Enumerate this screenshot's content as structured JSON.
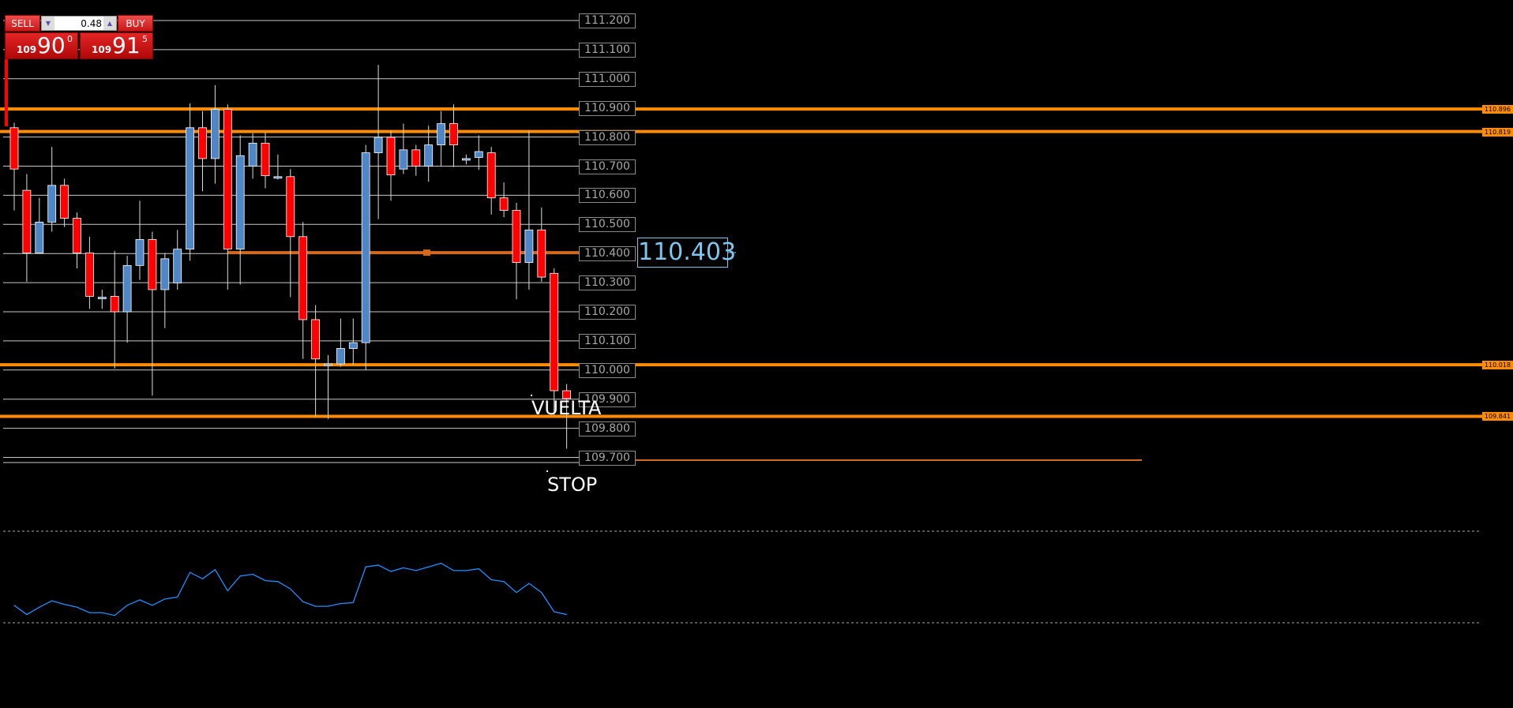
{
  "trade_panel": {
    "sell_label": "SELL",
    "buy_label": "BUY",
    "lot_size": "0.48",
    "sell_price": {
      "prefix": "109",
      "big": "90",
      "sup": "0"
    },
    "buy_price": {
      "prefix": "109",
      "big": "91",
      "sup": "5"
    }
  },
  "price_axis": [
    "111.200",
    "111.100",
    "111.000",
    "110.900",
    "110.800",
    "110.700",
    "110.600",
    "110.500",
    "110.400",
    "110.300",
    "110.200",
    "110.100",
    "110.000",
    "109.900",
    "109.800",
    "109.700"
  ],
  "current_price": "110.403",
  "levels": [
    {
      "label": "110.896",
      "price": 110.896
    },
    {
      "label": "110.819",
      "price": 110.819
    },
    {
      "label": "110.018",
      "price": 110.018
    },
    {
      "label": "109.841",
      "price": 109.841
    }
  ],
  "annotations": {
    "vuelta": "VUELTA",
    "stop": "STOP"
  },
  "colors": {
    "bull": "#4f86c6",
    "bear": "#ff0000",
    "level": "#ff8c00",
    "oscillator": "#1e90ff",
    "current": "#7fc6ee"
  },
  "chart_data": {
    "type": "candlestick",
    "ylim": [
      109.7,
      111.2
    ],
    "candles": [
      [
        110.832,
        110.849,
        110.548,
        110.69
      ],
      [
        110.617,
        110.673,
        110.303,
        110.402
      ],
      [
        110.402,
        110.591,
        110.4,
        110.508
      ],
      [
        110.508,
        110.766,
        110.475,
        110.634
      ],
      [
        110.634,
        110.657,
        110.491,
        110.521
      ],
      [
        110.521,
        110.541,
        110.349,
        110.402
      ],
      [
        110.402,
        110.458,
        110.21,
        110.253
      ],
      [
        110.25,
        110.276,
        110.21,
        110.25
      ],
      [
        110.253,
        110.409,
        110.005,
        110.2
      ],
      [
        110.2,
        110.392,
        110.094,
        110.359
      ],
      [
        110.359,
        110.581,
        110.309,
        110.448
      ],
      [
        110.448,
        110.475,
        109.912,
        110.276
      ],
      [
        110.276,
        110.402,
        110.144,
        110.382
      ],
      [
        110.299,
        110.481,
        110.276,
        110.415
      ],
      [
        110.415,
        110.915,
        110.375,
        110.832
      ],
      [
        110.832,
        110.889,
        110.614,
        110.726
      ],
      [
        110.726,
        110.978,
        110.64,
        110.895
      ],
      [
        110.895,
        110.912,
        110.276,
        110.415
      ],
      [
        110.415,
        110.806,
        110.293,
        110.736
      ],
      [
        110.7,
        110.813,
        110.657,
        110.779
      ],
      [
        110.779,
        110.816,
        110.624,
        110.667
      ],
      [
        110.664,
        110.74,
        110.654,
        110.664
      ],
      [
        110.664,
        110.69,
        110.25,
        110.458
      ],
      [
        110.458,
        110.508,
        110.038,
        110.173
      ],
      [
        110.173,
        110.223,
        109.839,
        110.038
      ],
      [
        110.021,
        110.051,
        109.832,
        110.021
      ],
      [
        110.021,
        110.177,
        110.011,
        110.074
      ],
      [
        110.074,
        110.177,
        110.018,
        110.094
      ],
      [
        110.094,
        110.773,
        110.001,
        110.746
      ],
      [
        110.746,
        111.048,
        110.518,
        110.799
      ],
      [
        110.799,
        110.822,
        110.581,
        110.67
      ],
      [
        110.69,
        110.846,
        110.673,
        110.756
      ],
      [
        110.756,
        110.773,
        110.667,
        110.7
      ],
      [
        110.7,
        110.839,
        110.647,
        110.773
      ],
      [
        110.773,
        110.889,
        110.7,
        110.846
      ],
      [
        110.846,
        110.912,
        110.697,
        110.773
      ],
      [
        110.726,
        110.74,
        110.706,
        110.726
      ],
      [
        110.73,
        110.806,
        110.687,
        110.75
      ],
      [
        110.746,
        110.766,
        110.534,
        110.591
      ],
      [
        110.591,
        110.644,
        110.525,
        110.548
      ],
      [
        110.548,
        110.574,
        110.243,
        110.369
      ],
      [
        110.369,
        110.822,
        110.276,
        110.481
      ],
      [
        110.481,
        110.558,
        110.303,
        110.319
      ],
      [
        110.332,
        110.349,
        109.846,
        109.929
      ],
      [
        109.929,
        109.952,
        109.73,
        109.902
      ]
    ],
    "oscillator": {
      "ylim": [
        0,
        100
      ],
      "values": [
        19,
        9,
        17,
        24,
        20,
        17,
        11,
        11,
        8,
        19,
        25,
        19,
        26,
        28,
        55,
        48,
        58,
        35,
        51,
        53,
        46,
        45,
        37,
        23,
        18,
        18,
        21,
        22,
        61,
        63,
        56,
        60,
        57,
        61,
        65,
        57,
        57,
        59,
        47,
        45,
        33,
        43,
        33,
        12,
        9
      ]
    }
  }
}
